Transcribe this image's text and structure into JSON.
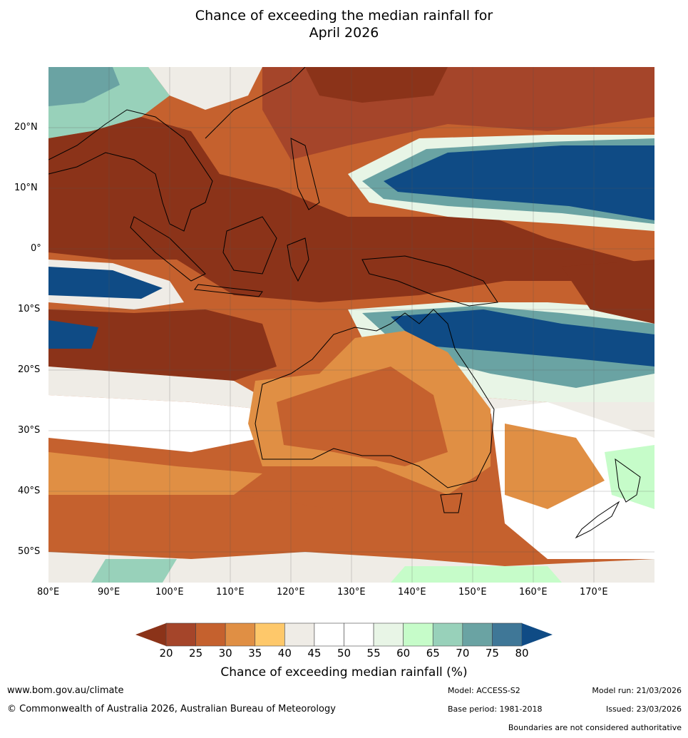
{
  "title": {
    "line1": "Chance of exceeding the median rainfall for",
    "line2": "April 2026"
  },
  "map": {
    "lon_labels": [
      "80°E",
      "90°E",
      "100°E",
      "110°E",
      "120°E",
      "130°E",
      "140°E",
      "150°E",
      "160°E",
      "170°E"
    ],
    "lat_labels": [
      "20°N",
      "10°N",
      "0°",
      "10°S",
      "20°S",
      "30°S",
      "40°S",
      "50°S"
    ]
  },
  "colorbar": {
    "ticks": [
      "20",
      "25",
      "30",
      "35",
      "40",
      "45",
      "50",
      "55",
      "60",
      "65",
      "70",
      "75",
      "80"
    ],
    "under_color": "#8b3319",
    "over_color": "#0f4b85",
    "colors": [
      "#a5452a",
      "#c5612e",
      "#e08f44",
      "#fec86a",
      "#efece6",
      "#ffffff",
      "#ffffff",
      "#e8f5e6",
      "#c6fcc9",
      "#98d1ba",
      "#6aa3a3",
      "#3f7797"
    ],
    "title": "Chance of exceeding median rainfall (%)"
  },
  "footer": {
    "website": "www.bom.gov.au/climate",
    "copyright": "© Commonwealth of Australia 2026, Australian Bureau of Meteorology",
    "model": "Model: ACCESS-S2",
    "base_period": "Base period: 1981-2018",
    "model_run": "Model run: 21/03/2026",
    "issued": "Issued: 23/03/2026",
    "disclaimer": "Boundaries are not considered authoritative"
  }
}
